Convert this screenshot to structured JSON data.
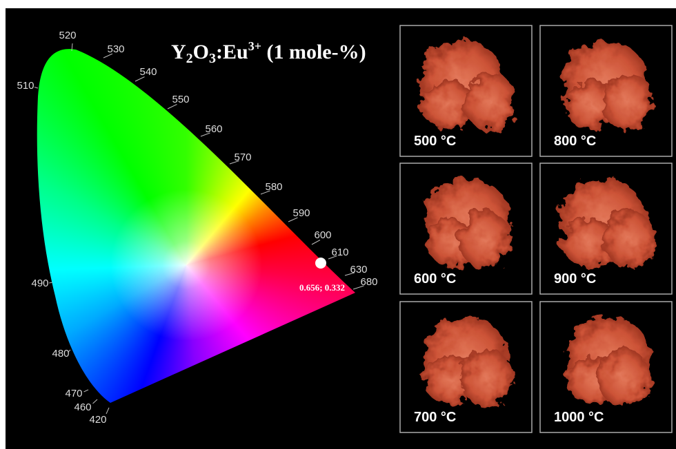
{
  "title": {
    "parts": [
      "Y",
      "2",
      "O",
      "3",
      ":Eu",
      "3+",
      " (1 mole-%)"
    ]
  },
  "wavelengths": [
    "520",
    "530",
    "540",
    "550",
    "560",
    "570",
    "580",
    "590",
    "600",
    "610",
    "630",
    "680",
    "510",
    "490",
    "480",
    "470",
    "460",
    "420"
  ],
  "point_label": "0.656; 0.332",
  "panels": [
    "500 °C",
    "800 °C",
    "600 °C",
    "900 °C",
    "700 °C",
    "1000 °C"
  ]
}
